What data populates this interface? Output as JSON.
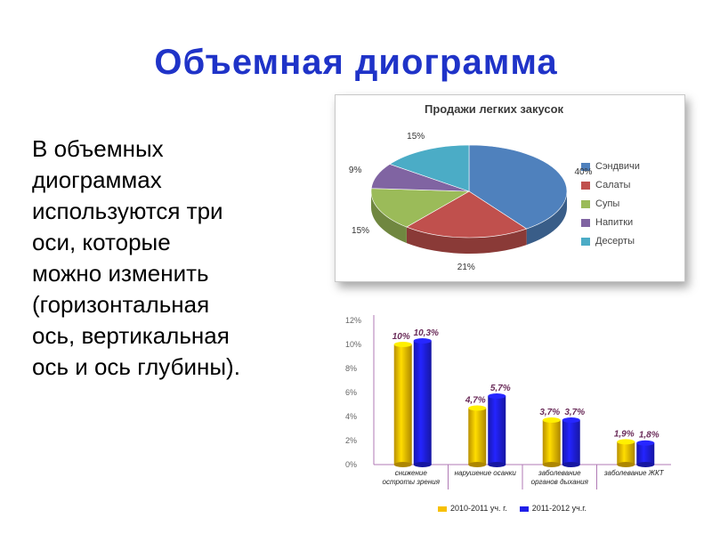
{
  "slide": {
    "title": "Объемная диограмма",
    "body_lines": [
      " В объемных",
      "диограммах",
      "используются три",
      "оси, которые",
      "можно изменить",
      "(горизонтальная",
      "ось, вертикальная",
      "ось и ось глубины)."
    ]
  },
  "chart_data": [
    {
      "type": "pie",
      "title": "Продажи легких закусок",
      "categories": [
        "Сэндвичи",
        "Салаты",
        "Супы",
        "Напитки",
        "Десерты"
      ],
      "values": [
        40,
        21,
        15,
        9,
        15
      ],
      "value_labels": [
        "40%",
        "21%",
        "15%",
        "9%",
        "15%"
      ],
      "colors": [
        "#4f81bd",
        "#c0504d",
        "#9bbb59",
        "#8064a2",
        "#4bacc6"
      ],
      "legend": "right",
      "three_d": true
    },
    {
      "type": "bar",
      "three_d": true,
      "categories": [
        "снижение остроты зрения",
        "нарушение осанки",
        "заболевание органов дыхания",
        "заболевание ЖКТ"
      ],
      "series": [
        {
          "name": "2010-2011 уч. г.",
          "values": [
            10,
            4.7,
            3.7,
            1.9
          ],
          "color": "#f7c000"
        },
        {
          "name": "2011-2012 уч.г.",
          "values": [
            10.3,
            5.7,
            3.7,
            1.8
          ],
          "color": "#1f1fe8"
        }
      ],
      "data_labels": [
        [
          "10%",
          "4,7%",
          "3,7%",
          "1,9%"
        ],
        [
          "10,3%",
          "5,7%",
          "3,7%",
          "1,8%"
        ]
      ],
      "y_ticks": [
        "0%",
        "2%",
        "4%",
        "6%",
        "8%",
        "10%",
        "12%"
      ],
      "ylim": [
        0,
        12
      ],
      "grid": false,
      "legend": "bottom"
    }
  ]
}
